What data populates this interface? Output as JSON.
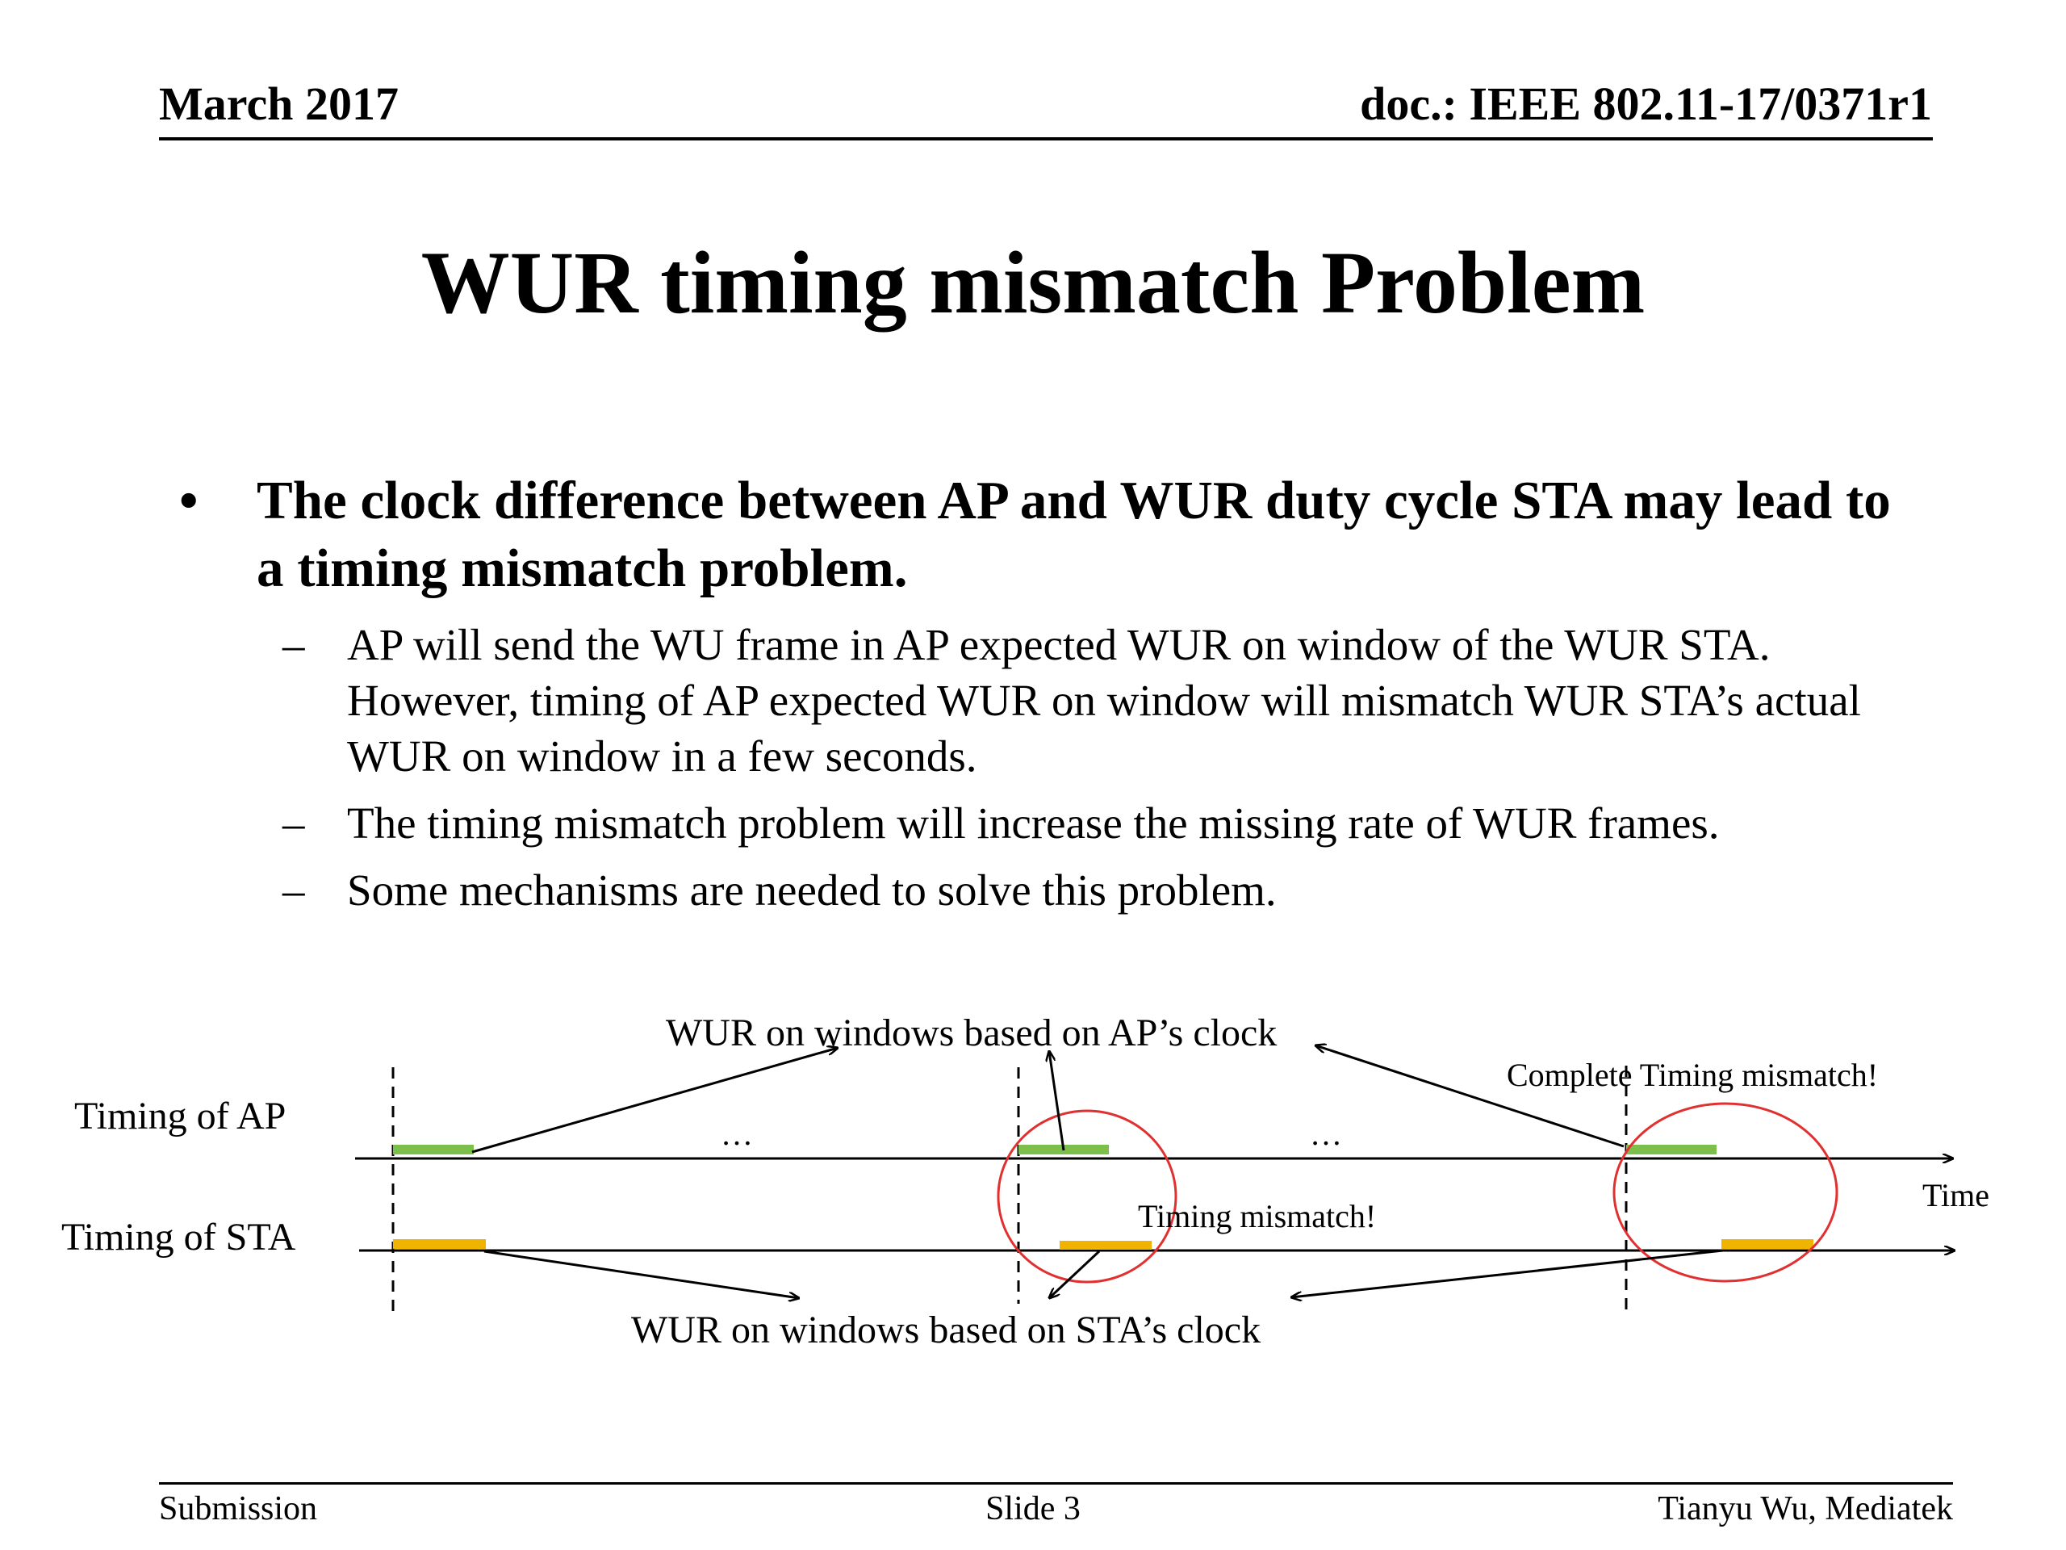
{
  "header": {
    "date": "March 2017",
    "doc": "doc.: IEEE 802.11-17/0371r1"
  },
  "title": "WUR timing mismatch Problem",
  "bullets": {
    "main": {
      "marker": "•",
      "text": "The clock difference between AP and WUR duty cycle STA may lead to a timing mismatch problem."
    },
    "subs": [
      {
        "marker": "–",
        "text": "AP will send the WU frame in AP expected WUR on window of the WUR STA. However, timing of AP expected WUR on window will mismatch WUR STA’s actual WUR on window in a few seconds."
      },
      {
        "marker": "–",
        "text": "The timing mismatch problem will increase the missing rate of WUR frames."
      },
      {
        "marker": "–",
        "text": "Some mechanisms are needed to solve this problem."
      }
    ]
  },
  "diagram": {
    "ap_label": "Timing of AP",
    "sta_label": "Timing of STA",
    "ap_windows_label": "WUR on windows based on AP’s clock",
    "sta_windows_label": "WUR on windows based on STA’s clock",
    "time_label": "Time",
    "ellipsis": "…",
    "mismatch_label": "Timing mismatch!",
    "complete_mismatch_label": "Complete Timing mismatch!",
    "colors": {
      "ap_window": "#7cbf4a",
      "sta_window": "#f0b400",
      "circle": "#e03030"
    }
  },
  "footer": {
    "left": "Submission",
    "center": "Slide 3",
    "right": "Tianyu Wu, Mediatek"
  }
}
